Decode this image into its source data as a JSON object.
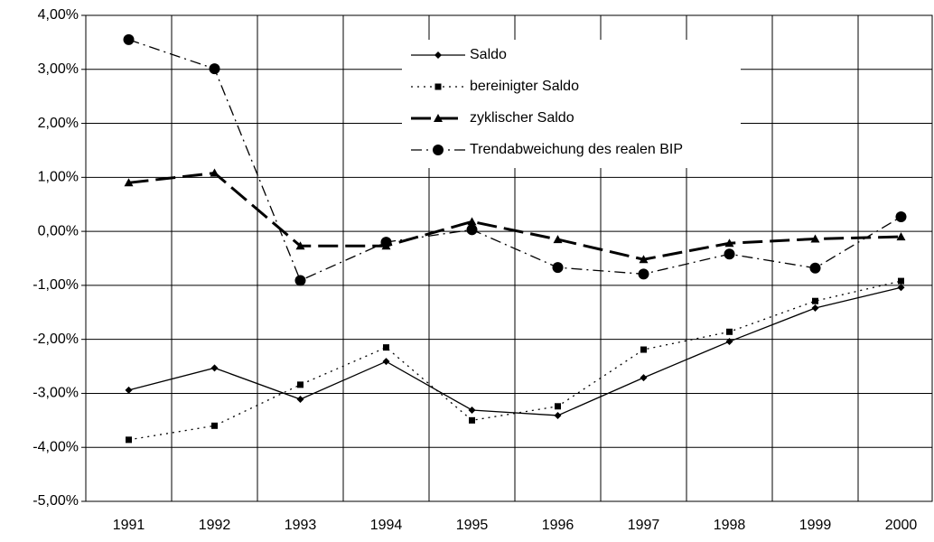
{
  "chart_data": {
    "type": "line",
    "categories": [
      "1991",
      "1992",
      "1993",
      "1994",
      "1995",
      "1996",
      "1997",
      "1998",
      "1999",
      "2000"
    ],
    "series": [
      {
        "name": "Saldo",
        "color": "#000000",
        "values": [
          -2.94,
          -2.53,
          -3.11,
          -2.41,
          -3.31,
          -3.41,
          -2.71,
          -2.04,
          -1.42,
          -1.04
        ]
      },
      {
        "name": "bereinigter Saldo",
        "color": "#000000",
        "values": [
          -3.86,
          -3.6,
          -2.84,
          -2.15,
          -3.5,
          -3.24,
          -2.19,
          -1.86,
          -1.29,
          -0.92
        ]
      },
      {
        "name": "zyklischer Saldo",
        "color": "#000000",
        "values": [
          0.9,
          1.08,
          -0.27,
          -0.27,
          0.18,
          -0.15,
          -0.52,
          -0.22,
          -0.14,
          -0.1
        ]
      },
      {
        "name": "Trendabweichung des realen BIP",
        "color": "#000000",
        "values": [
          3.55,
          3.01,
          -0.91,
          -0.2,
          0.03,
          -0.67,
          -0.79,
          -0.42,
          -0.68,
          0.27
        ]
      }
    ],
    "ylim": [
      -5,
      4
    ],
    "yticks": [
      {
        "value": -5,
        "label": "-5,00%"
      },
      {
        "value": -4,
        "label": "-4,00%"
      },
      {
        "value": -3,
        "label": "-3,00%"
      },
      {
        "value": -2,
        "label": "-2,00%"
      },
      {
        "value": -1,
        "label": "-1,00%"
      },
      {
        "value": 0,
        "label": "0,00%"
      },
      {
        "value": 1,
        "label": "1,00%"
      },
      {
        "value": 2,
        "label": "2,00%"
      },
      {
        "value": 3,
        "label": "3,00%"
      },
      {
        "value": 4,
        "label": "4,00%"
      }
    ],
    "grid": true
  }
}
